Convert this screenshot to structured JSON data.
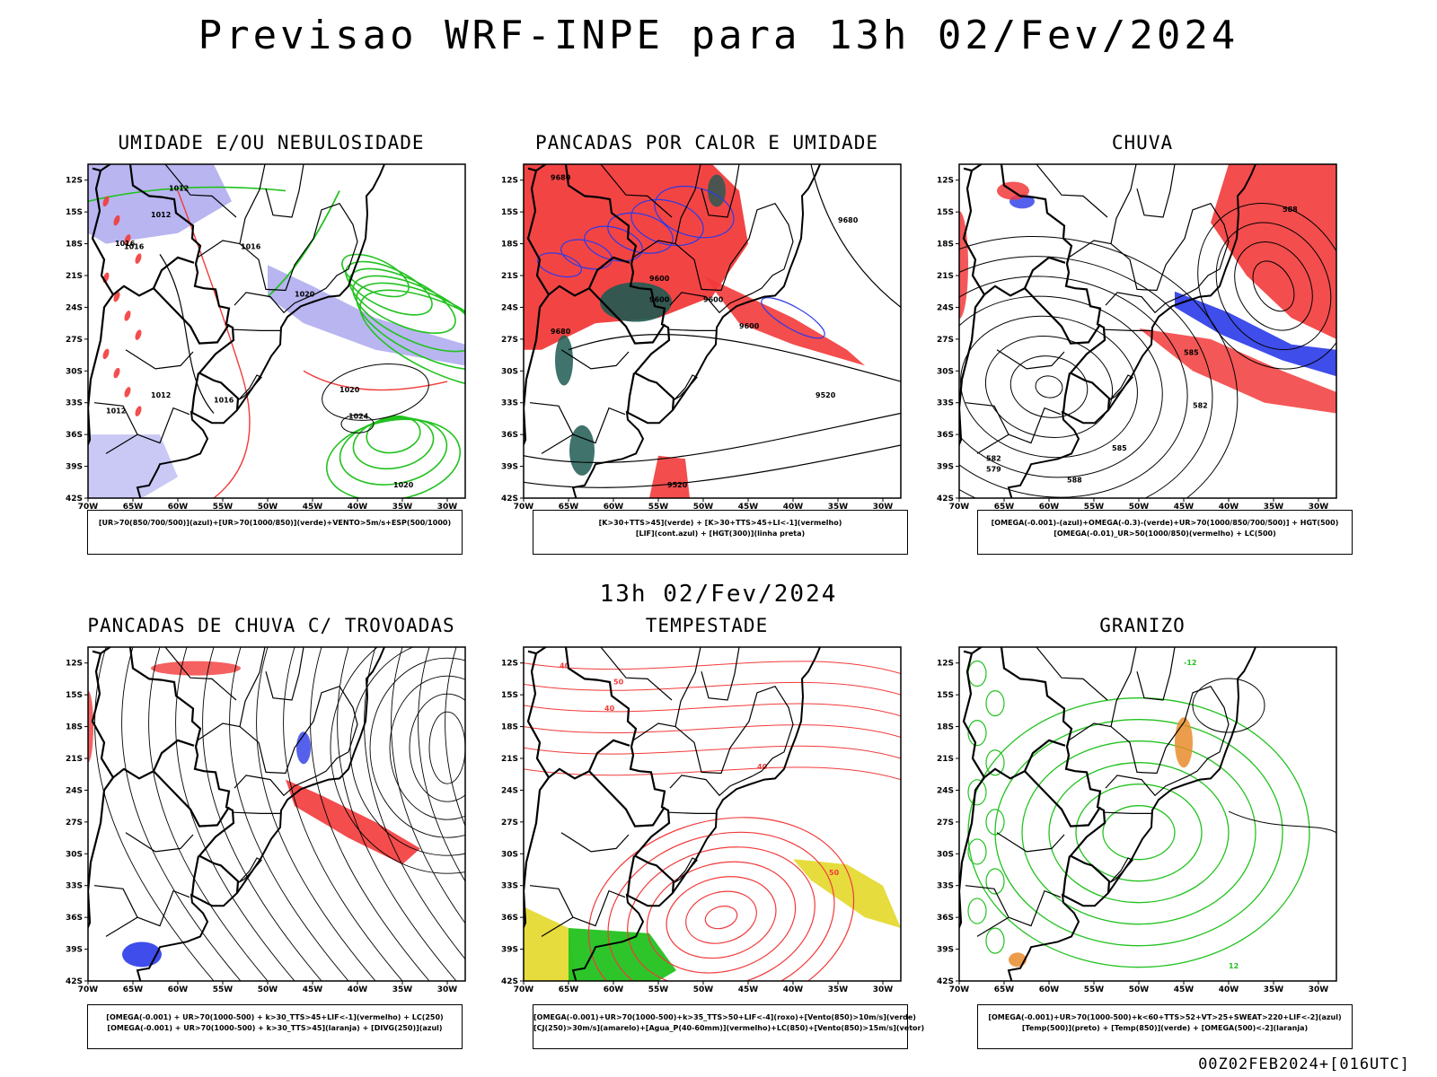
{
  "main_title": "Previsao WRF-INPE  para 13h 02/Fev/2024",
  "mid_title": "13h 02/Fev/2024",
  "footer": "00Z02FEB2024+[016UTC]",
  "axes": {
    "lat_labels": [
      "12S",
      "15S",
      "18S",
      "21S",
      "24S",
      "27S",
      "30S",
      "33S",
      "36S",
      "39S",
      "42S"
    ],
    "lon_labels": [
      "70W",
      "65W",
      "60W",
      "55W",
      "50W",
      "45W",
      "40W",
      "35W",
      "30W"
    ]
  },
  "colors": {
    "red": "#f23a3a",
    "green": "#22c21f",
    "blue": "#2a3ae8",
    "lavender": "#a7a3ee",
    "teal": "#1f5a52",
    "yellow": "#e3d829",
    "orange": "#e98c2b",
    "purple": "#9a2ad8"
  },
  "panels": [
    {
      "title": "UMIDADE E/OU NEBULOSIDADE",
      "legend": [
        "[UR>70(850/700/500)](azul)+[UR>70(1000/850)](verde)+VENTO>5m/s+ESP(500/1000)"
      ],
      "contour_labels": [
        "1012",
        "1012",
        "1016",
        "1016",
        "1016",
        "1020",
        "1020",
        "1024",
        "1020",
        "1012",
        "1012",
        "1016"
      ]
    },
    {
      "title": "PANCADAS POR CALOR E UMIDADE",
      "legend": [
        "[K>30+TTS>45](verde) + [K>30+TTS>45+LI<-1](vermelho)",
        "[LIF](cont.azul) + [HGT(300)](linha preta)"
      ],
      "contour_labels": [
        "9680",
        "9680",
        "9600",
        "9600",
        "9600",
        "9520",
        "9600",
        "9520",
        "9680"
      ]
    },
    {
      "title": "CHUVA",
      "legend": [
        "[OMEGA(-0.001)-(azul)+OMEGA(-0.3)-(verde)+UR>70(1000/850/700/500)] + HGT(500)",
        "[OMEGA(-0.01)_UR>50(1000/850)(vermelho) + LC(500)"
      ],
      "contour_labels": [
        "588",
        "585",
        "582",
        "585",
        "582",
        "579",
        "588"
      ]
    },
    {
      "title": "PANCADAS DE CHUVA C/ TROVOADAS",
      "legend": [
        "[OMEGA(-0.001) + UR>70(1000-500) + k>30_TTS>45+LIF<-1](vermelho) + LC(250)",
        "[OMEGA(-0.001) + UR>70(1000-500) + k>30_TTS>45](laranja) + [DIVG(250)](azul)"
      ],
      "contour_labels": []
    },
    {
      "title": "TEMPESTADE",
      "legend": [
        "[OMEGA(-0.001)+UR>70(1000-500)+k>35_TTS>50+LIF<-4](roxo)+[Vento(850)>10m/s](verde)",
        "[CJ(250)>30m/s](amarelo)+[Agua_P(40-60mm)](vermelho)+LC(850)+[Vento(850)>15m/s](vetor)"
      ],
      "contour_labels": [
        "40",
        "40",
        "50",
        "40",
        "50"
      ]
    },
    {
      "title": "GRANIZO",
      "legend": [
        "[OMEGA(-0.001)+UR>70(1000-500)+k<60+TTS>52+VT>25+SWEAT>220+LIF<-2](azul)",
        "[Temp(500)](preto) + [Temp(850)](verde) + [OMEGA(500)<-2](laranja)"
      ],
      "contour_labels": [
        "-12",
        "12"
      ]
    }
  ]
}
